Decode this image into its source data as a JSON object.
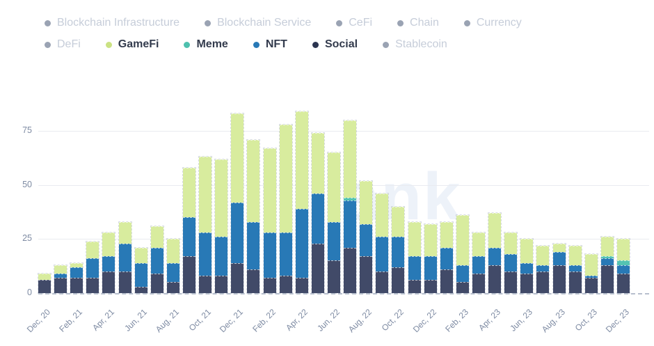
{
  "watermark": "ank",
  "legend": {
    "items": [
      {
        "label": "Blockchain Infrastructure",
        "active": false
      },
      {
        "label": "Blockchain Service",
        "active": false
      },
      {
        "label": "CeFi",
        "active": false
      },
      {
        "label": "Chain",
        "active": false
      },
      {
        "label": "Currency",
        "active": false
      },
      {
        "label": "DeFi",
        "active": false
      },
      {
        "label": "GameFi",
        "active": true,
        "color": "#cbe283"
      },
      {
        "label": "Meme",
        "active": true,
        "color": "#4ec0ae"
      },
      {
        "label": "NFT",
        "active": true,
        "color": "#2879b6"
      },
      {
        "label": "Social",
        "active": true,
        "color": "#2b3450"
      },
      {
        "label": "Stablecoin",
        "active": false
      }
    ]
  },
  "chart_data": {
    "type": "bar",
    "stacked": true,
    "title": "",
    "xlabel": "",
    "ylabel": "",
    "grid": true,
    "legend_position": "top",
    "yticks": [
      0,
      25,
      50,
      75
    ],
    "ylim": [
      0,
      87.3
    ],
    "x_tick_every": 2,
    "categories": [
      "Dec, 20",
      "Jan, 21",
      "Feb, 21",
      "Mar, 21",
      "Apr, 21",
      "May, 21",
      "Jun, 21",
      "Jul, 21",
      "Aug, 21",
      "Sep, 21",
      "Oct, 21",
      "Nov, 21",
      "Dec, 21",
      "Jan, 22",
      "Feb, 22",
      "Mar, 22",
      "Apr, 22",
      "May, 22",
      "Jun, 22",
      "Jul, 22",
      "Aug, 22",
      "Sep, 22",
      "Oct, 22",
      "Nov, 22",
      "Dec, 22",
      "Jan, 23",
      "Feb, 23",
      "Mar, 23",
      "Apr, 23",
      "May, 23",
      "Jun, 23",
      "Jul, 23",
      "Aug, 23",
      "Sep, 23",
      "Oct, 23",
      "Nov, 23",
      "Dec, 23"
    ],
    "series": [
      {
        "name": "Social",
        "color": "#414a68",
        "values": [
          6,
          7,
          7,
          7,
          10,
          10,
          3,
          9,
          5,
          17,
          8,
          8,
          14,
          11,
          7,
          8,
          7,
          23,
          15,
          21,
          17,
          10,
          12,
          6,
          6,
          11,
          5,
          9,
          13,
          10,
          9,
          10,
          13,
          10,
          7,
          13,
          9
        ]
      },
      {
        "name": "NFT",
        "color": "#2879b6",
        "values": [
          0,
          2,
          5,
          9,
          7,
          13,
          11,
          12,
          9,
          18,
          20,
          18,
          28,
          22,
          21,
          20,
          32,
          23,
          18,
          22,
          15,
          16,
          14,
          11,
          11,
          10,
          8,
          8,
          8,
          8,
          5,
          3,
          6,
          3,
          1,
          3,
          4
        ]
      },
      {
        "name": "Meme",
        "color": "#54c3b2",
        "values": [
          0,
          0,
          0,
          0,
          0,
          0,
          0,
          0,
          0,
          0,
          0,
          0,
          0,
          0,
          0,
          0,
          0,
          0,
          0,
          1,
          0,
          0,
          0,
          0,
          0,
          0,
          0,
          0,
          0,
          0,
          0,
          0,
          0,
          0,
          0,
          1,
          2
        ]
      },
      {
        "name": "GameFi",
        "color": "#d8ec9e",
        "values": [
          3,
          4,
          2,
          8,
          11,
          10,
          7,
          10,
          11,
          23,
          35,
          36,
          41,
          38,
          39,
          50,
          45,
          28,
          32,
          36,
          20,
          20,
          14,
          16,
          15,
          12,
          23,
          11,
          16,
          10,
          11,
          9,
          4,
          9,
          10,
          9,
          10
        ]
      }
    ]
  }
}
